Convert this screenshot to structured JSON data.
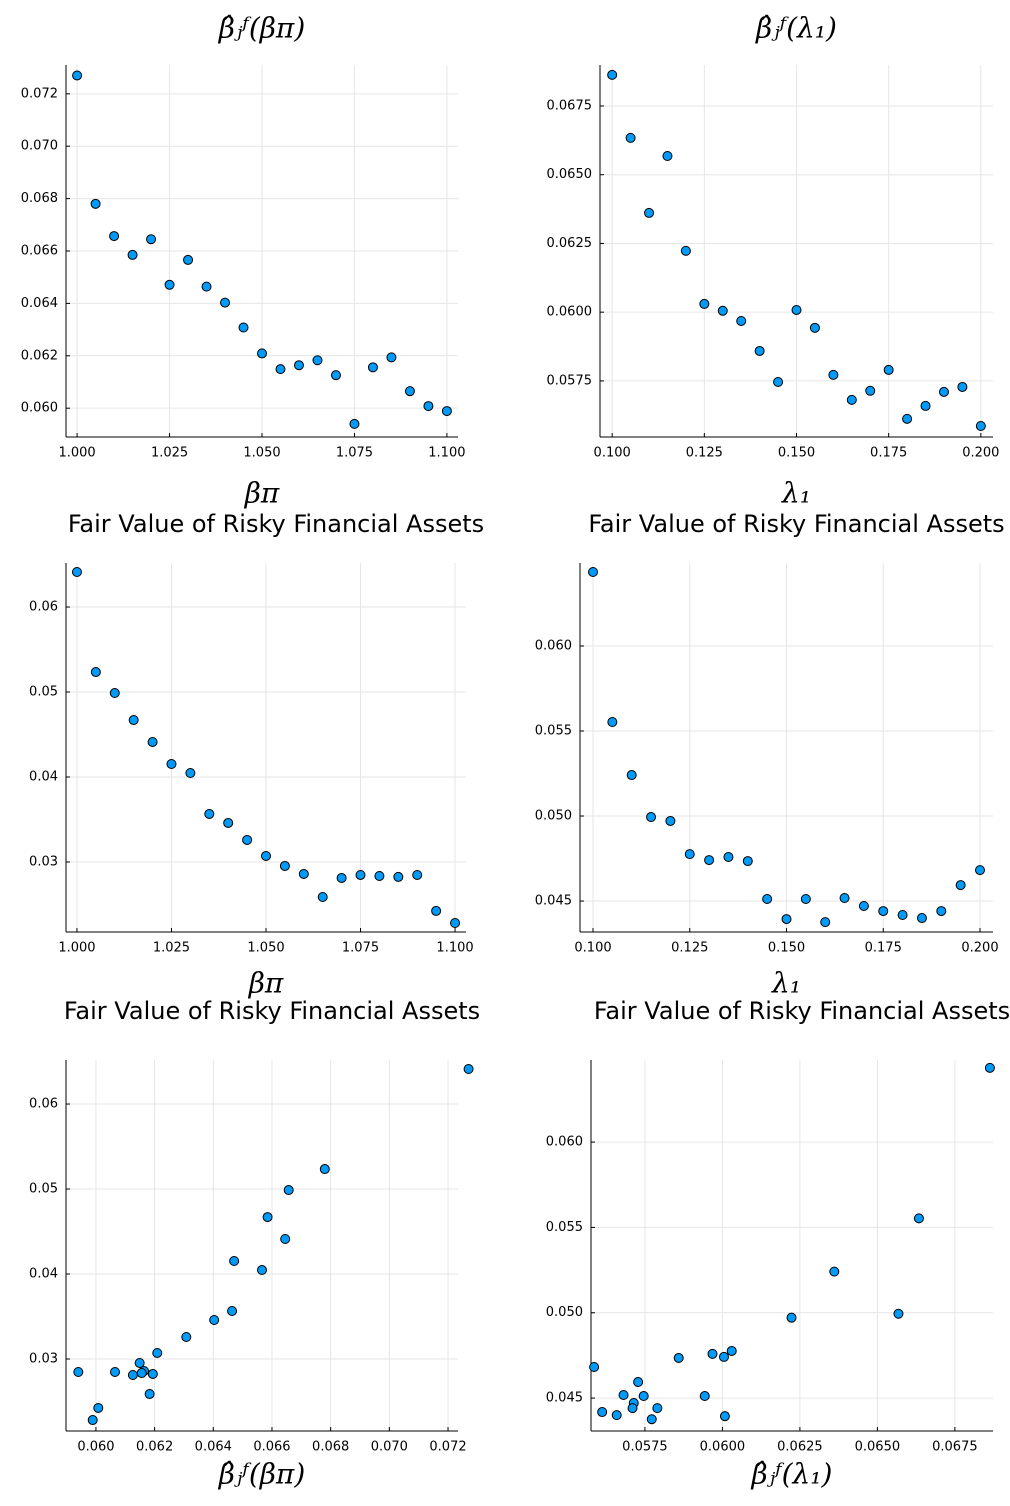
{
  "chart_data": [
    {
      "type": "scatter",
      "title": "β̂ⱼᶠ(βπ)",
      "x_label": "βπ",
      "color": "#009af9",
      "grid": true,
      "x": [
        1.0,
        1.005,
        1.01,
        1.015,
        1.02,
        1.025,
        1.03,
        1.035,
        1.04,
        1.045,
        1.05,
        1.055,
        1.06,
        1.065,
        1.07,
        1.075,
        1.08,
        1.085,
        1.09,
        1.095,
        1.1
      ],
      "values": [
        0.0727,
        0.0678,
        0.06657,
        0.06585,
        0.06645,
        0.06471,
        0.06566,
        0.06464,
        0.06403,
        0.06308,
        0.06209,
        0.06149,
        0.06164,
        0.06183,
        0.06126,
        0.0594,
        0.06156,
        0.06194,
        0.06065,
        0.06008,
        0.05989
      ],
      "xlim": [
        0.997,
        1.103
      ],
      "ylim": [
        0.0589,
        0.0731
      ],
      "xticks": [
        {
          "value": 1.0,
          "label": "1.000"
        },
        {
          "value": 1.025,
          "label": "1.025"
        },
        {
          "value": 1.05,
          "label": "1.050"
        },
        {
          "value": 1.075,
          "label": "1.075"
        },
        {
          "value": 1.1,
          "label": "1.100"
        }
      ],
      "yticks": [
        {
          "value": 0.06,
          "label": "0.060"
        },
        0.062,
        0.064,
        0.066,
        0.068,
        {
          "value": 0.07,
          "label": "0.070"
        },
        0.072
      ]
    },
    {
      "type": "scatter",
      "title": "β̂ⱼᶠ(λ₁)",
      "x_label": "λ₁",
      "color": "#009af9",
      "grid": true,
      "x": [
        0.1,
        0.105,
        0.11,
        0.115,
        0.12,
        0.125,
        0.13,
        0.135,
        0.14,
        0.145,
        0.15,
        0.155,
        0.16,
        0.165,
        0.17,
        0.175,
        0.18,
        0.185,
        0.19,
        0.195,
        0.2
      ],
      "values": [
        0.06863,
        0.06634,
        0.06361,
        0.06568,
        0.06223,
        0.0603,
        0.06005,
        0.05968,
        0.05859,
        0.05746,
        0.06008,
        0.05943,
        0.05772,
        0.05681,
        0.05714,
        0.0579,
        0.05612,
        0.05659,
        0.0571,
        0.05728,
        0.05586
      ],
      "xlim": [
        0.0967,
        0.2033
      ],
      "ylim": [
        0.05546,
        0.06899
      ],
      "xticks": [
        {
          "value": 0.1,
          "label": "0.100"
        },
        0.125,
        {
          "value": 0.15,
          "label": "0.150"
        },
        0.175,
        {
          "value": 0.2,
          "label": "0.200"
        }
      ],
      "yticks": [
        {
          "value": 0.0575,
          "label": "0.0575"
        },
        {
          "value": 0.06,
          "label": "0.0600"
        },
        0.0625,
        {
          "value": 0.065,
          "label": "0.0650"
        },
        0.0675
      ]
    },
    {
      "type": "scatter",
      "title": "Fair Value of Risky Financial Assets",
      "x_label": "βπ",
      "color": "#009af9",
      "grid": true,
      "x": [
        1.0,
        1.005,
        1.01,
        1.015,
        1.02,
        1.025,
        1.03,
        1.035,
        1.04,
        1.045,
        1.05,
        1.055,
        1.06,
        1.065,
        1.07,
        1.075,
        1.08,
        1.085,
        1.09,
        1.095,
        1.1
      ],
      "values": [
        0.06412,
        0.05235,
        0.04988,
        0.0467,
        0.04412,
        0.04153,
        0.04047,
        0.03565,
        0.03459,
        0.03259,
        0.03071,
        0.02953,
        0.02859,
        0.02588,
        0.02812,
        0.02847,
        0.02835,
        0.02824,
        0.02847,
        0.02424,
        0.02282
      ],
      "xlim": [
        0.9971,
        1.1029
      ],
      "ylim": [
        0.02176,
        0.06518
      ],
      "xticks": [
        {
          "value": 1.0,
          "label": "1.000"
        },
        {
          "value": 1.025,
          "label": "1.025"
        },
        {
          "value": 1.05,
          "label": "1.050"
        },
        {
          "value": 1.075,
          "label": "1.075"
        },
        {
          "value": 1.1,
          "label": "1.100"
        }
      ],
      "yticks": [
        0.03,
        0.04,
        0.05,
        0.06
      ]
    },
    {
      "type": "scatter",
      "title": "Fair Value of Risky Financial Assets",
      "x_label": "λ₁",
      "color": "#009af9",
      "grid": true,
      "x": [
        0.1,
        0.105,
        0.11,
        0.115,
        0.12,
        0.125,
        0.13,
        0.135,
        0.14,
        0.145,
        0.15,
        0.155,
        0.16,
        0.165,
        0.17,
        0.175,
        0.18,
        0.185,
        0.19,
        0.195,
        0.2
      ],
      "values": [
        0.06435,
        0.05553,
        0.05241,
        0.04994,
        0.04971,
        0.04776,
        0.04741,
        0.04759,
        0.04735,
        0.04512,
        0.04394,
        0.04512,
        0.04376,
        0.04518,
        0.04471,
        0.04441,
        0.04418,
        0.044,
        0.04441,
        0.04594,
        0.04682
      ],
      "xlim": [
        0.09664,
        0.20336
      ],
      "ylim": [
        0.04318,
        0.06488
      ],
      "xticks": [
        {
          "value": 0.1,
          "label": "0.100"
        },
        0.125,
        {
          "value": 0.15,
          "label": "0.150"
        },
        0.175,
        {
          "value": 0.2,
          "label": "0.200"
        }
      ],
      "yticks": [
        0.045,
        {
          "value": 0.05,
          "label": "0.050"
        },
        0.055,
        {
          "value": 0.06,
          "label": "0.060"
        }
      ]
    },
    {
      "type": "scatter",
      "title": "Fair Value of Risky Financial Assets",
      "x_label": "β̂ⱼᶠ(βπ)",
      "color": "#009af9",
      "grid": true,
      "x": [
        0.0727,
        0.0678,
        0.06657,
        0.06585,
        0.06645,
        0.06471,
        0.06566,
        0.06464,
        0.06403,
        0.06308,
        0.06209,
        0.06149,
        0.06164,
        0.06183,
        0.06126,
        0.0594,
        0.06156,
        0.06194,
        0.06065,
        0.06008,
        0.05989
      ],
      "values": [
        0.06412,
        0.05235,
        0.04988,
        0.0467,
        0.04412,
        0.04153,
        0.04047,
        0.03565,
        0.03459,
        0.03259,
        0.03071,
        0.02953,
        0.02859,
        0.02588,
        0.02812,
        0.02847,
        0.02835,
        0.02824,
        0.02847,
        0.02424,
        0.02282
      ],
      "xlim": [
        0.05898,
        0.07234
      ],
      "ylim": [
        0.02153,
        0.06518
      ],
      "xticks": [
        {
          "value": 0.06,
          "label": "0.060"
        },
        0.062,
        0.064,
        0.066,
        0.068,
        {
          "value": 0.07,
          "label": "0.070"
        },
        0.072
      ],
      "yticks": [
        0.03,
        0.04,
        0.05,
        0.06
      ]
    },
    {
      "type": "scatter",
      "title": "Fair Value of Risky Financial Assets",
      "x_label": "β̂ⱼᶠ(λ₁)",
      "color": "#009af9",
      "grid": true,
      "x": [
        0.06863,
        0.06634,
        0.06361,
        0.06568,
        0.06223,
        0.0603,
        0.06005,
        0.05968,
        0.05859,
        0.05746,
        0.06008,
        0.05943,
        0.05772,
        0.05681,
        0.05714,
        0.0579,
        0.05612,
        0.05659,
        0.0571,
        0.05728,
        0.05586
      ],
      "values": [
        0.06435,
        0.05553,
        0.05241,
        0.04994,
        0.04971,
        0.04776,
        0.04741,
        0.04759,
        0.04735,
        0.04512,
        0.04394,
        0.04512,
        0.04376,
        0.04518,
        0.04471,
        0.04441,
        0.04418,
        0.044,
        0.04441,
        0.04594,
        0.04682
      ],
      "xlim": [
        0.05576,
        0.06873
      ],
      "ylim": [
        0.04307,
        0.06481
      ],
      "xticks": [
        {
          "value": 0.0575,
          "label": "0.0575"
        },
        {
          "value": 0.06,
          "label": "0.0600"
        },
        0.0625,
        {
          "value": 0.065,
          "label": "0.0650"
        },
        0.0675
      ],
      "yticks": [
        0.045,
        {
          "value": 0.05,
          "label": "0.050"
        },
        0.055,
        {
          "value": 0.06,
          "label": "0.060"
        }
      ]
    }
  ]
}
